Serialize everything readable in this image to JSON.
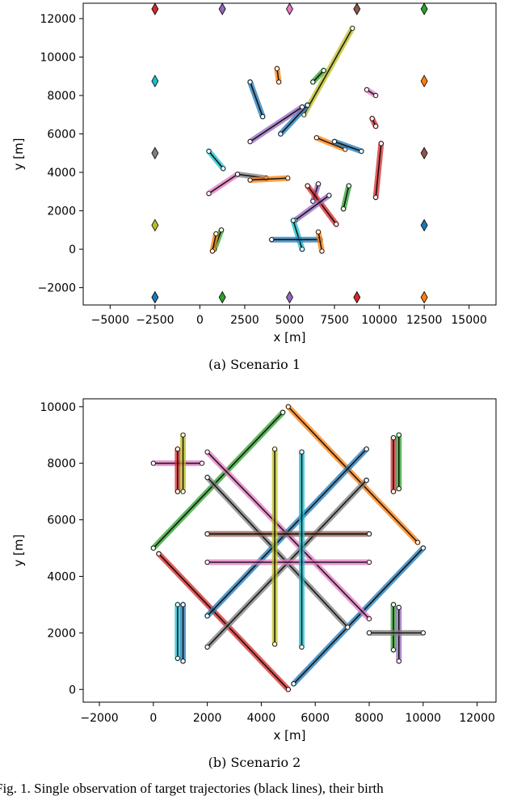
{
  "chart_data": [
    {
      "type": "line",
      "caption": "(a) Scenario 1",
      "xlabel": "x [m]",
      "ylabel": "y [m]",
      "xlim": [
        -6500,
        16500
      ],
      "ylim": [
        -2900,
        12800
      ],
      "xticks": [
        -5000,
        -2500,
        0,
        2500,
        5000,
        7500,
        10000,
        12500,
        15000
      ],
      "yticks": [
        -2000,
        0,
        2000,
        4000,
        6000,
        8000,
        10000,
        12000
      ],
      "grid": false,
      "births": [
        {
          "x": -2500,
          "y": 12500,
          "color": "#d62728"
        },
        {
          "x": 1250,
          "y": 12500,
          "color": "#9467bd"
        },
        {
          "x": 5000,
          "y": 12500,
          "color": "#e377c2"
        },
        {
          "x": 8750,
          "y": 12500,
          "color": "#8c564b"
        },
        {
          "x": 12500,
          "y": 12500,
          "color": "#2ca02c"
        },
        {
          "x": -2500,
          "y": 8750,
          "color": "#17becf"
        },
        {
          "x": 12500,
          "y": 8750,
          "color": "#ff7f0e"
        },
        {
          "x": -2500,
          "y": 5000,
          "color": "#7f7f7f"
        },
        {
          "x": 12500,
          "y": 5000,
          "color": "#8c564b"
        },
        {
          "x": -2500,
          "y": 1250,
          "color": "#bcbd22"
        },
        {
          "x": 12500,
          "y": 1250,
          "color": "#1f77b4"
        },
        {
          "x": -2500,
          "y": -2500,
          "color": "#1f77b4"
        },
        {
          "x": 1250,
          "y": -2500,
          "color": "#2ca02c"
        },
        {
          "x": 5000,
          "y": -2500,
          "color": "#9467bd"
        },
        {
          "x": 8750,
          "y": -2500,
          "color": "#d62728"
        },
        {
          "x": 12500,
          "y": -2500,
          "color": "#ff7f0e"
        }
      ],
      "trajectories": [
        {
          "x1": 5800,
          "y1": 7000,
          "x2": 8500,
          "y2": 11500,
          "color": "#bcbd22"
        },
        {
          "x1": 2800,
          "y1": 8700,
          "x2": 3500,
          "y2": 6900,
          "color": "#1f77b4"
        },
        {
          "x1": 4300,
          "y1": 9400,
          "x2": 4400,
          "y2": 8700,
          "color": "#ff7f0e"
        },
        {
          "x1": 6900,
          "y1": 9300,
          "x2": 6300,
          "y2": 8700,
          "color": "#2ca02c"
        },
        {
          "x1": 6000,
          "y1": 7500,
          "x2": 4500,
          "y2": 6000,
          "color": "#1f77b4"
        },
        {
          "x1": 5700,
          "y1": 7400,
          "x2": 2800,
          "y2": 5600,
          "color": "#9467bd"
        },
        {
          "x1": 9300,
          "y1": 8300,
          "x2": 9800,
          "y2": 8000,
          "color": "#e377c2"
        },
        {
          "x1": 9600,
          "y1": 6800,
          "x2": 9800,
          "y2": 6400,
          "color": "#d62728"
        },
        {
          "x1": 6500,
          "y1": 5800,
          "x2": 8100,
          "y2": 5200,
          "color": "#ff7f0e"
        },
        {
          "x1": 7500,
          "y1": 5600,
          "x2": 9000,
          "y2": 5100,
          "color": "#1f77b4"
        },
        {
          "x1": 10100,
          "y1": 5500,
          "x2": 9800,
          "y2": 2700,
          "color": "#d62728"
        },
        {
          "x1": 500,
          "y1": 5100,
          "x2": 1300,
          "y2": 4200,
          "color": "#17becf"
        },
        {
          "x1": 500,
          "y1": 2900,
          "x2": 2100,
          "y2": 3900,
          "color": "#e377c2"
        },
        {
          "x1": 2100,
          "y1": 3900,
          "x2": 3700,
          "y2": 3700,
          "color": "#7f7f7f"
        },
        {
          "x1": 2800,
          "y1": 3600,
          "x2": 4900,
          "y2": 3700,
          "color": "#ff7f0e"
        },
        {
          "x1": 6600,
          "y1": 3400,
          "x2": 6300,
          "y2": 2500,
          "color": "#9467bd"
        },
        {
          "x1": 6000,
          "y1": 3300,
          "x2": 7600,
          "y2": 1300,
          "color": "#d62728"
        },
        {
          "x1": 5300,
          "y1": 1500,
          "x2": 7200,
          "y2": 2800,
          "color": "#9467bd"
        },
        {
          "x1": 8300,
          "y1": 3300,
          "x2": 8000,
          "y2": 2100,
          "color": "#2ca02c"
        },
        {
          "x1": 5200,
          "y1": 1500,
          "x2": 5700,
          "y2": 0,
          "color": "#17becf"
        },
        {
          "x1": 4000,
          "y1": 500,
          "x2": 6700,
          "y2": 500,
          "color": "#1f77b4"
        },
        {
          "x1": 6600,
          "y1": 900,
          "x2": 6800,
          "y2": -100,
          "color": "#ff7f0e"
        },
        {
          "x1": 1200,
          "y1": 1000,
          "x2": 800,
          "y2": 0,
          "color": "#2ca02c"
        },
        {
          "x1": 900,
          "y1": 800,
          "x2": 700,
          "y2": -100,
          "color": "#ff7f0e"
        }
      ]
    },
    {
      "type": "line",
      "caption": "(b) Scenario 2",
      "xlabel": "x [m]",
      "ylabel": "y [m]",
      "xlim": [
        -2600,
        12700
      ],
      "ylim": [
        -450,
        10280
      ],
      "xticks": [
        -2000,
        0,
        2000,
        4000,
        6000,
        8000,
        10000,
        12000
      ],
      "yticks": [
        0,
        2000,
        4000,
        6000,
        8000,
        10000
      ],
      "grid": false,
      "trajectories": [
        {
          "x1": 0,
          "y1": 5000,
          "x2": 4800,
          "y2": 9800,
          "color": "#2ca02c"
        },
        {
          "x1": 5000,
          "y1": 10000,
          "x2": 9800,
          "y2": 5200,
          "color": "#ff7f0e"
        },
        {
          "x1": 200,
          "y1": 4800,
          "x2": 5000,
          "y2": 0,
          "color": "#d62728"
        },
        {
          "x1": 5200,
          "y1": 200,
          "x2": 10000,
          "y2": 5000,
          "color": "#1f77b4"
        },
        {
          "x1": 2000,
          "y1": 8400,
          "x2": 8000,
          "y2": 2500,
          "color": "#e377c2"
        },
        {
          "x1": 2000,
          "y1": 7500,
          "x2": 7200,
          "y2": 2200,
          "color": "#7f7f7f"
        },
        {
          "x1": 2000,
          "y1": 2600,
          "x2": 7900,
          "y2": 8500,
          "color": "#1f77b4"
        },
        {
          "x1": 2000,
          "y1": 1500,
          "x2": 7900,
          "y2": 7400,
          "color": "#7f7f7f"
        },
        {
          "x1": 2000,
          "y1": 5500,
          "x2": 8000,
          "y2": 5500,
          "color": "#8c564b"
        },
        {
          "x1": 2000,
          "y1": 4500,
          "x2": 8000,
          "y2": 4500,
          "color": "#e377c2"
        },
        {
          "x1": 4500,
          "y1": 8500,
          "x2": 4500,
          "y2": 1600,
          "color": "#bcbd22"
        },
        {
          "x1": 5500,
          "y1": 8400,
          "x2": 5500,
          "y2": 1500,
          "color": "#17becf"
        },
        {
          "x1": 0,
          "y1": 8000,
          "x2": 1800,
          "y2": 8000,
          "color": "#e377c2"
        },
        {
          "x1": 900,
          "y1": 8500,
          "x2": 900,
          "y2": 7000,
          "color": "#d62728"
        },
        {
          "x1": 1100,
          "y1": 9000,
          "x2": 1100,
          "y2": 7000,
          "color": "#bcbd22"
        },
        {
          "x1": 8900,
          "y1": 8900,
          "x2": 8900,
          "y2": 7000,
          "color": "#d62728"
        },
        {
          "x1": 9100,
          "y1": 9000,
          "x2": 9100,
          "y2": 7100,
          "color": "#2ca02c"
        },
        {
          "x1": 900,
          "y1": 3000,
          "x2": 900,
          "y2": 1100,
          "color": "#17becf"
        },
        {
          "x1": 1100,
          "y1": 3000,
          "x2": 1100,
          "y2": 1000,
          "color": "#1f77b4"
        },
        {
          "x1": 8900,
          "y1": 3000,
          "x2": 8900,
          "y2": 1400,
          "color": "#2ca02c"
        },
        {
          "x1": 9100,
          "y1": 2900,
          "x2": 9100,
          "y2": 1000,
          "color": "#9467bd"
        },
        {
          "x1": 8000,
          "y1": 2000,
          "x2": 10000,
          "y2": 2000,
          "color": "#7f7f7f"
        }
      ]
    }
  ],
  "figure_caption": "Fig. 1.   Single observation of target trajectories (black lines), their birth"
}
